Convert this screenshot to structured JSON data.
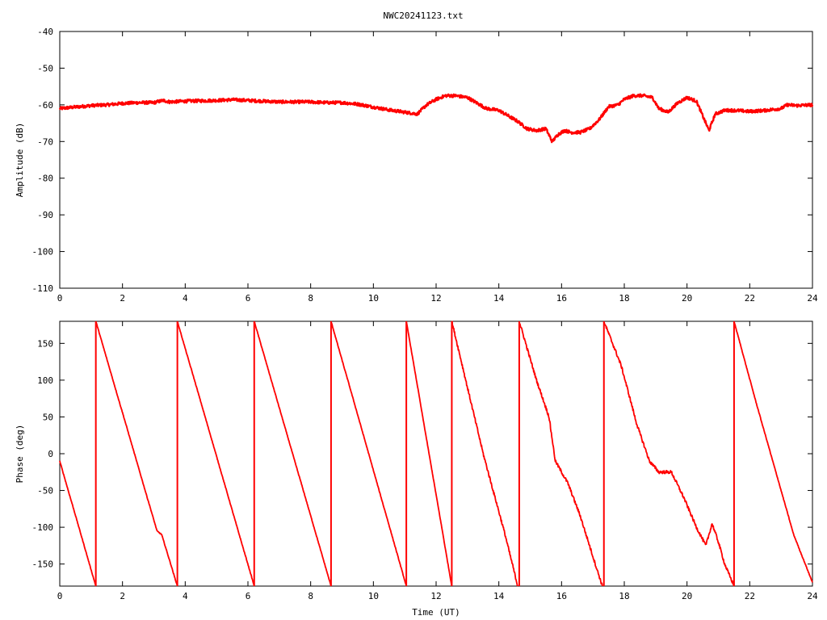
{
  "title": "NWC20241123.txt",
  "colors": {
    "series": "#ff0000",
    "axes": "#000000",
    "background": "#ffffff"
  },
  "chart_data": [
    {
      "type": "line",
      "panel": "top",
      "title": "NWC20241123.txt",
      "xlabel": "",
      "ylabel": "Amplitude (dB)",
      "xlim": [
        0,
        24
      ],
      "ylim": [
        -110,
        -40
      ],
      "x_ticks": [
        "0",
        "2",
        "4",
        "6",
        "8",
        "10",
        "12",
        "14",
        "16",
        "18",
        "20",
        "22",
        "24"
      ],
      "y_ticks": [
        "-40",
        "-50",
        "-60",
        "-70",
        "-80",
        "-90",
        "-100",
        "-110"
      ],
      "grid": false,
      "series": [
        {
          "x": [
            0,
            0.5,
            1,
            1.5,
            2,
            2.5,
            3,
            3.3,
            3.5,
            4,
            5,
            5.5,
            6,
            7,
            8,
            8.5,
            9,
            9.5,
            10,
            10.5,
            11,
            11.4,
            11.7,
            12,
            12.3,
            12.6,
            13,
            13.3,
            13.6,
            14,
            14.3,
            14.6,
            14.9,
            15.2,
            15.5,
            15.7,
            15.9,
            16.1,
            16.3,
            16.6,
            16.9,
            17.2,
            17.5,
            17.8,
            18,
            18.3,
            18.6,
            18.9,
            19.1,
            19.4,
            19.7,
            20,
            20.3,
            20.5,
            20.7,
            20.9,
            21.2,
            21.5,
            22,
            22.5,
            23,
            23.2,
            23.5,
            24
          ],
          "y": [
            -61,
            -60.6,
            -60.2,
            -60,
            -59.6,
            -59.4,
            -59.4,
            -58.8,
            -59.2,
            -59,
            -58.8,
            -58.6,
            -58.8,
            -59.2,
            -59.2,
            -59.4,
            -59.4,
            -59.8,
            -60.6,
            -61.4,
            -62,
            -62.5,
            -60,
            -58.5,
            -57.5,
            -57.5,
            -58,
            -59.5,
            -61,
            -61.5,
            -63,
            -64.5,
            -66.5,
            -67,
            -66.5,
            -70,
            -68,
            -67,
            -67.5,
            -67.5,
            -66.5,
            -64,
            -60.5,
            -60,
            -58.5,
            -57.5,
            -57.5,
            -58,
            -61,
            -62,
            -59.5,
            -58,
            -59,
            -63,
            -67,
            -62.5,
            -61.5,
            -61.5,
            -61.8,
            -61.5,
            -61,
            -60,
            -60.2,
            -60
          ],
          "style": "noisy"
        }
      ]
    },
    {
      "type": "line",
      "panel": "bottom",
      "xlabel": "Time (UT)",
      "ylabel": "Phase (deg)",
      "xlim": [
        0,
        24
      ],
      "ylim": [
        -180,
        180
      ],
      "x_ticks": [
        "0",
        "2",
        "4",
        "6",
        "8",
        "10",
        "12",
        "14",
        "16",
        "18",
        "20",
        "22",
        "24"
      ],
      "y_ticks": [
        "150",
        "100",
        "50",
        "0",
        "-50",
        "-100",
        "-150"
      ],
      "grid": false,
      "series": [
        {
          "x": [
            0,
            1.15
          ],
          "y": [
            -10,
            -180
          ],
          "style": "line"
        },
        {
          "x": [
            1.15,
            3.1,
            3.25,
            3.75
          ],
          "y": [
            180,
            -105,
            -110,
            -180
          ],
          "style": "line"
        },
        {
          "x": [
            3.75,
            6.2
          ],
          "y": [
            180,
            -180
          ],
          "style": "line"
        },
        {
          "x": [
            6.2,
            8.65
          ],
          "y": [
            180,
            -180
          ],
          "style": "line"
        },
        {
          "x": [
            8.65,
            11.05
          ],
          "y": [
            180,
            -180
          ],
          "style": "line"
        },
        {
          "x": [
            11.05,
            12.5
          ],
          "y": [
            180,
            -180
          ],
          "style": "line"
        },
        {
          "x": [
            12.5,
            13.5,
            14.2,
            14.6
          ],
          "y": [
            180,
            0,
            -110,
            -180
          ],
          "style": "noisy"
        },
        {
          "x": [
            14.65,
            15.2,
            15.6,
            15.8,
            16.2,
            16.6,
            17.0,
            17.3
          ],
          "y": [
            180,
            100,
            50,
            -10,
            -40,
            -85,
            -140,
            -180
          ],
          "style": "noisy"
        },
        {
          "x": [
            17.35,
            17.9,
            18.4,
            18.8,
            19.1,
            19.5,
            19.9,
            20.3,
            20.6,
            20.8,
            21.0,
            21.2,
            21.5
          ],
          "y": [
            180,
            120,
            40,
            -10,
            -25,
            -25,
            -60,
            -100,
            -125,
            -95,
            -120,
            -150,
            -180
          ],
          "style": "noisy"
        },
        {
          "x": [
            21.5,
            22.2,
            22.8,
            23.4,
            24
          ],
          "y": [
            180,
            70,
            -20,
            -110,
            -175
          ],
          "style": "line"
        }
      ]
    }
  ]
}
